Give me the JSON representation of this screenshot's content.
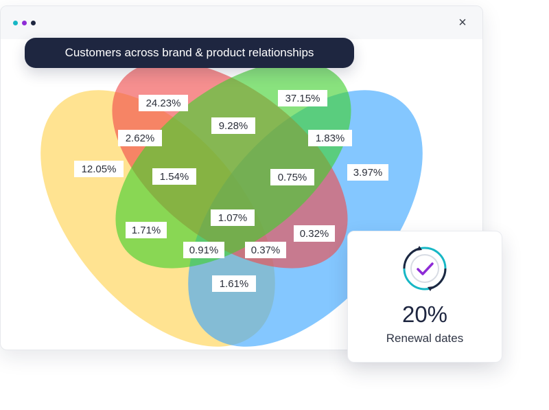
{
  "window": {
    "title": "Customers across brand & product relationships",
    "dots": [
      {
        "name": "dot-teal",
        "color": "#17b7c5"
      },
      {
        "name": "dot-purple",
        "color": "#8e2bd6"
      },
      {
        "name": "dot-dark",
        "color": "#1e2640"
      }
    ],
    "close_icon": "×"
  },
  "venn": {
    "sets": [
      {
        "id": "yellow",
        "color": "#ffd24d"
      },
      {
        "id": "red",
        "color": "#f04a4a"
      },
      {
        "id": "green",
        "color": "#41d12e"
      },
      {
        "id": "blue",
        "color": "#39a4ff"
      }
    ],
    "regions": [
      {
        "id": "red-only",
        "value": "24.23%"
      },
      {
        "id": "green-only",
        "value": "37.15%"
      },
      {
        "id": "yellow-only",
        "value": "12.05%"
      },
      {
        "id": "blue-only",
        "value": "3.97%"
      },
      {
        "id": "red-green",
        "value": "9.28%"
      },
      {
        "id": "yellow-red",
        "value": "2.62%"
      },
      {
        "id": "green-blue",
        "value": "1.83%"
      },
      {
        "id": "yellow-red-green",
        "value": "1.54%"
      },
      {
        "id": "red-green-blue",
        "value": "0.75%"
      },
      {
        "id": "all-four",
        "value": "1.07%"
      },
      {
        "id": "yellow-green",
        "value": "1.71%"
      },
      {
        "id": "red-blue",
        "value": "0.32%"
      },
      {
        "id": "yellow-green-blue",
        "value": "0.91%"
      },
      {
        "id": "yellow-red-blue",
        "value": "0.37%"
      },
      {
        "id": "yellow-blue",
        "value": "1.61%"
      }
    ]
  },
  "card": {
    "icon": "renewal-check-icon",
    "value": "20%",
    "label": "Renewal dates",
    "accent_color": "#8e2bd6",
    "ring_color": "#17b7c5"
  }
}
